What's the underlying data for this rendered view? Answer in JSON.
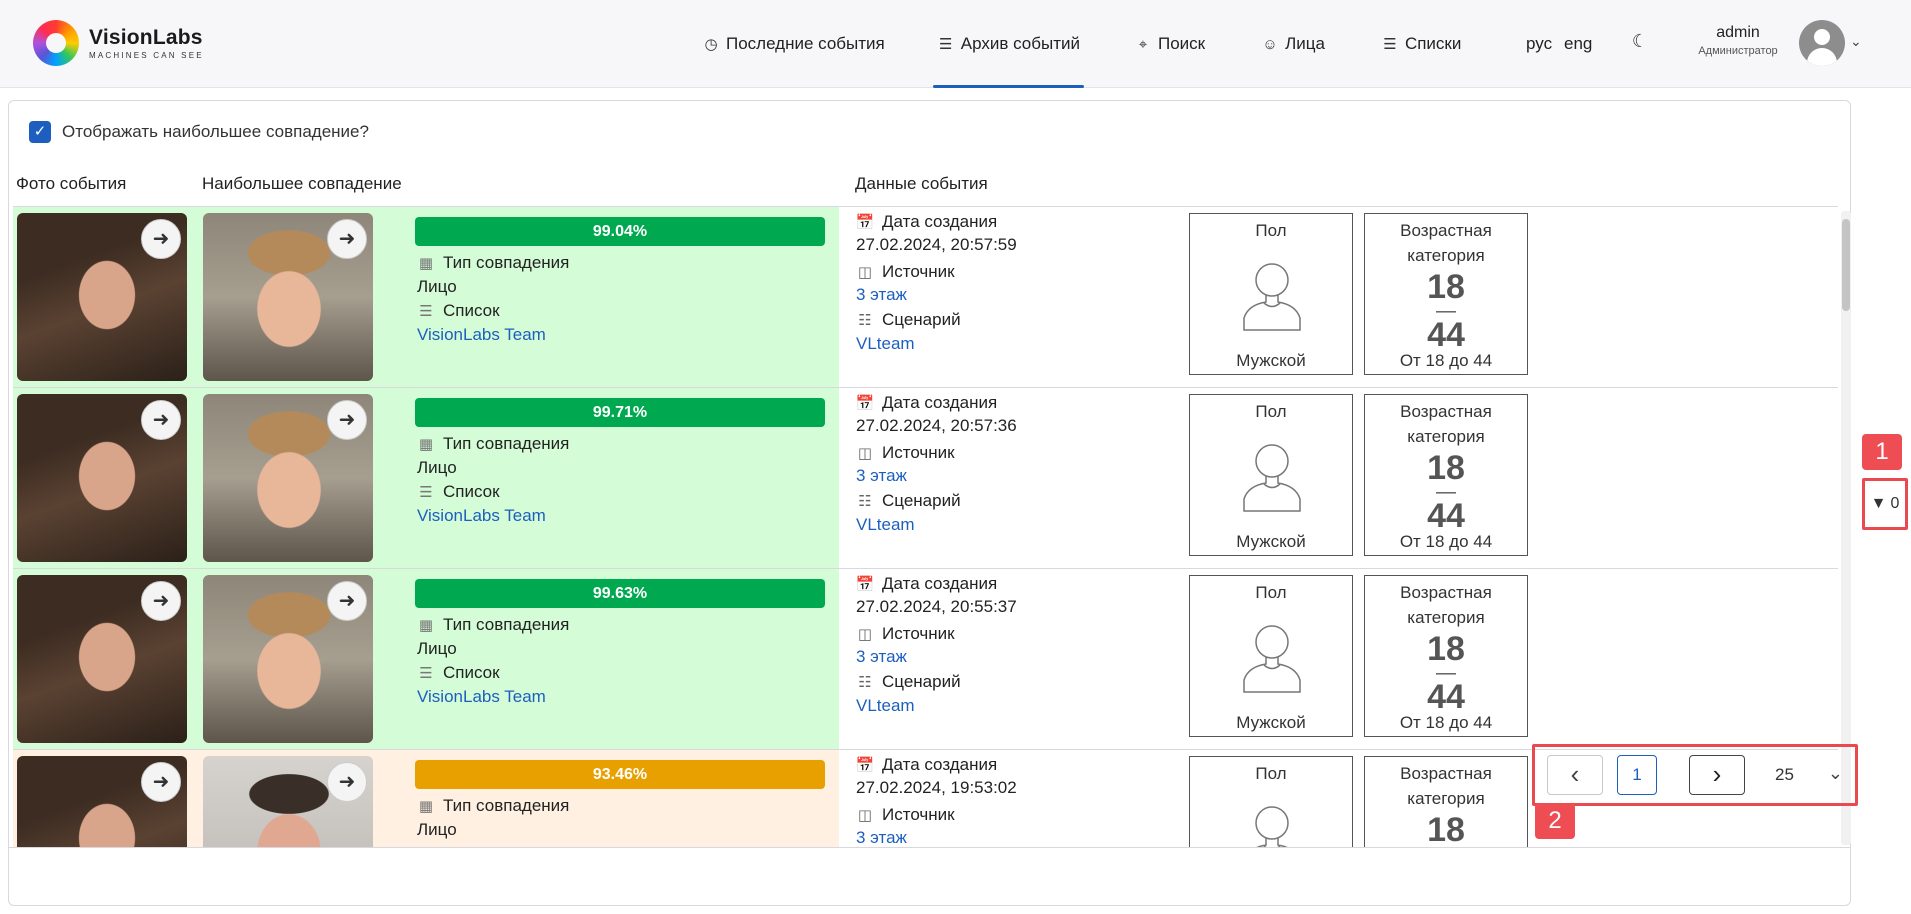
{
  "brand": {
    "name": "VisionLabs",
    "tagline": "MACHINES CAN SEE"
  },
  "nav": [
    {
      "label": "Последние события",
      "icon": "clock-icon",
      "active": false
    },
    {
      "label": "Архив событий",
      "icon": "list-icon",
      "active": true
    },
    {
      "label": "Поиск",
      "icon": "crosshair-icon",
      "active": false
    },
    {
      "label": "Лица",
      "icon": "users-icon",
      "active": false
    },
    {
      "label": "Списки",
      "icon": "list-icon",
      "active": false
    }
  ],
  "lang": {
    "ru": "рус",
    "en": "eng"
  },
  "user": {
    "name": "admin",
    "role": "Администратор"
  },
  "toolbar": {
    "best_match_label": "Отображать наибольшее совпадение?",
    "best_match_checked": true
  },
  "columns": {
    "event_photo": "Фото события",
    "best_match": "Наибольшее совпадение",
    "event_data": "Данные события"
  },
  "labels": {
    "match_type": "Тип совпадения",
    "list": "Список",
    "created": "Дата создания",
    "source": "Источник",
    "scenario": "Сценарий",
    "gender": "Пол",
    "age_category": "Возрастная категория"
  },
  "events": [
    {
      "score": "99.04%",
      "score_color": "#00a94f",
      "bg": "#d4fcd6",
      "match_type": "Лицо",
      "list": "VisionLabs Team",
      "created": "27.02.2024, 20:57:59",
      "source": "3 этаж",
      "scenario": "VLteam",
      "gender": "Мужской",
      "age_from": "18",
      "age_to": "44",
      "age_text": "От 18 до 44",
      "match_face": "face-mt"
    },
    {
      "score": "99.71%",
      "score_color": "#00a94f",
      "bg": "#d4fcd6",
      "match_type": "Лицо",
      "list": "VisionLabs Team",
      "created": "27.02.2024, 20:57:36",
      "source": "3 этаж",
      "scenario": "VLteam",
      "gender": "Мужской",
      "age_from": "18",
      "age_to": "44",
      "age_text": "От 18 до 44",
      "match_face": "face-mt"
    },
    {
      "score": "99.63%",
      "score_color": "#00a94f",
      "bg": "#d4fcd6",
      "match_type": "Лицо",
      "list": "VisionLabs Team",
      "created": "27.02.2024, 20:55:37",
      "source": "3 этаж",
      "scenario": "VLteam",
      "gender": "Мужской",
      "age_from": "18",
      "age_to": "44",
      "age_text": "От 18 до 44",
      "match_face": "face-mt"
    },
    {
      "score": "93.46%",
      "score_color": "#e89f00",
      "bg": "#fff0e2",
      "match_type": "Лицо",
      "list": "",
      "created": "27.02.2024, 19:53:02",
      "source": "3 этаж",
      "scenario": "",
      "gender": "",
      "age_from": "18",
      "age_to": "",
      "age_text": "",
      "match_face": "face-mt2"
    }
  ],
  "filter": {
    "count": "0"
  },
  "pagination": {
    "current_page": "1",
    "page_size": "25"
  },
  "annotations": {
    "marker_1": "1",
    "marker_2": "2"
  }
}
